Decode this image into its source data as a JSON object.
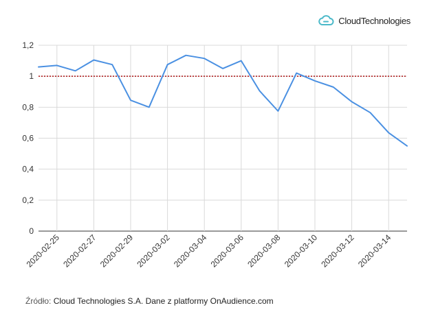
{
  "brand": {
    "name": "CloudTechnologies",
    "logo_icon": "cloud-icon",
    "accent": "#4bb9c9"
  },
  "footer": {
    "label": "Źródło:",
    "text": "Cloud Technologies S.A. Dane z platformy OnAudience.com"
  },
  "chart_data": {
    "type": "line",
    "title": "",
    "xlabel": "",
    "ylabel": "",
    "ylim": [
      0,
      1.2
    ],
    "yticks": [
      "0",
      "0,2",
      "0,4",
      "0,6",
      "0,8",
      "1",
      "1,2"
    ],
    "x": [
      "2020-02-24",
      "2020-02-25",
      "2020-02-26",
      "2020-02-27",
      "2020-02-28",
      "2020-02-29",
      "2020-03-01",
      "2020-03-02",
      "2020-03-03",
      "2020-03-04",
      "2020-03-05",
      "2020-03-06",
      "2020-03-07",
      "2020-03-08",
      "2020-03-09",
      "2020-03-10",
      "2020-03-11",
      "2020-03-12",
      "2020-03-13",
      "2020-03-14",
      "2020-03-15"
    ],
    "xtick_labels": [
      "2020-02-25",
      "2020-02-27",
      "2020-02-29",
      "2020-03-02",
      "2020-03-04",
      "2020-03-06",
      "2020-03-08",
      "2020-03-10",
      "2020-03-12",
      "2020-03-14"
    ],
    "series": [
      {
        "color": "#4a90e2",
        "values": [
          1.06,
          1.07,
          1.035,
          1.105,
          1.075,
          0.845,
          0.8,
          1.075,
          1.135,
          1.115,
          1.05,
          1.1,
          0.905,
          0.775,
          1.02,
          0.97,
          0.93,
          0.835,
          0.765,
          0.635,
          0.55
        ]
      }
    ],
    "reference_line": {
      "value": 1.0,
      "color": "#b22222",
      "style": "dotted"
    },
    "grid": true,
    "legend": "none"
  }
}
